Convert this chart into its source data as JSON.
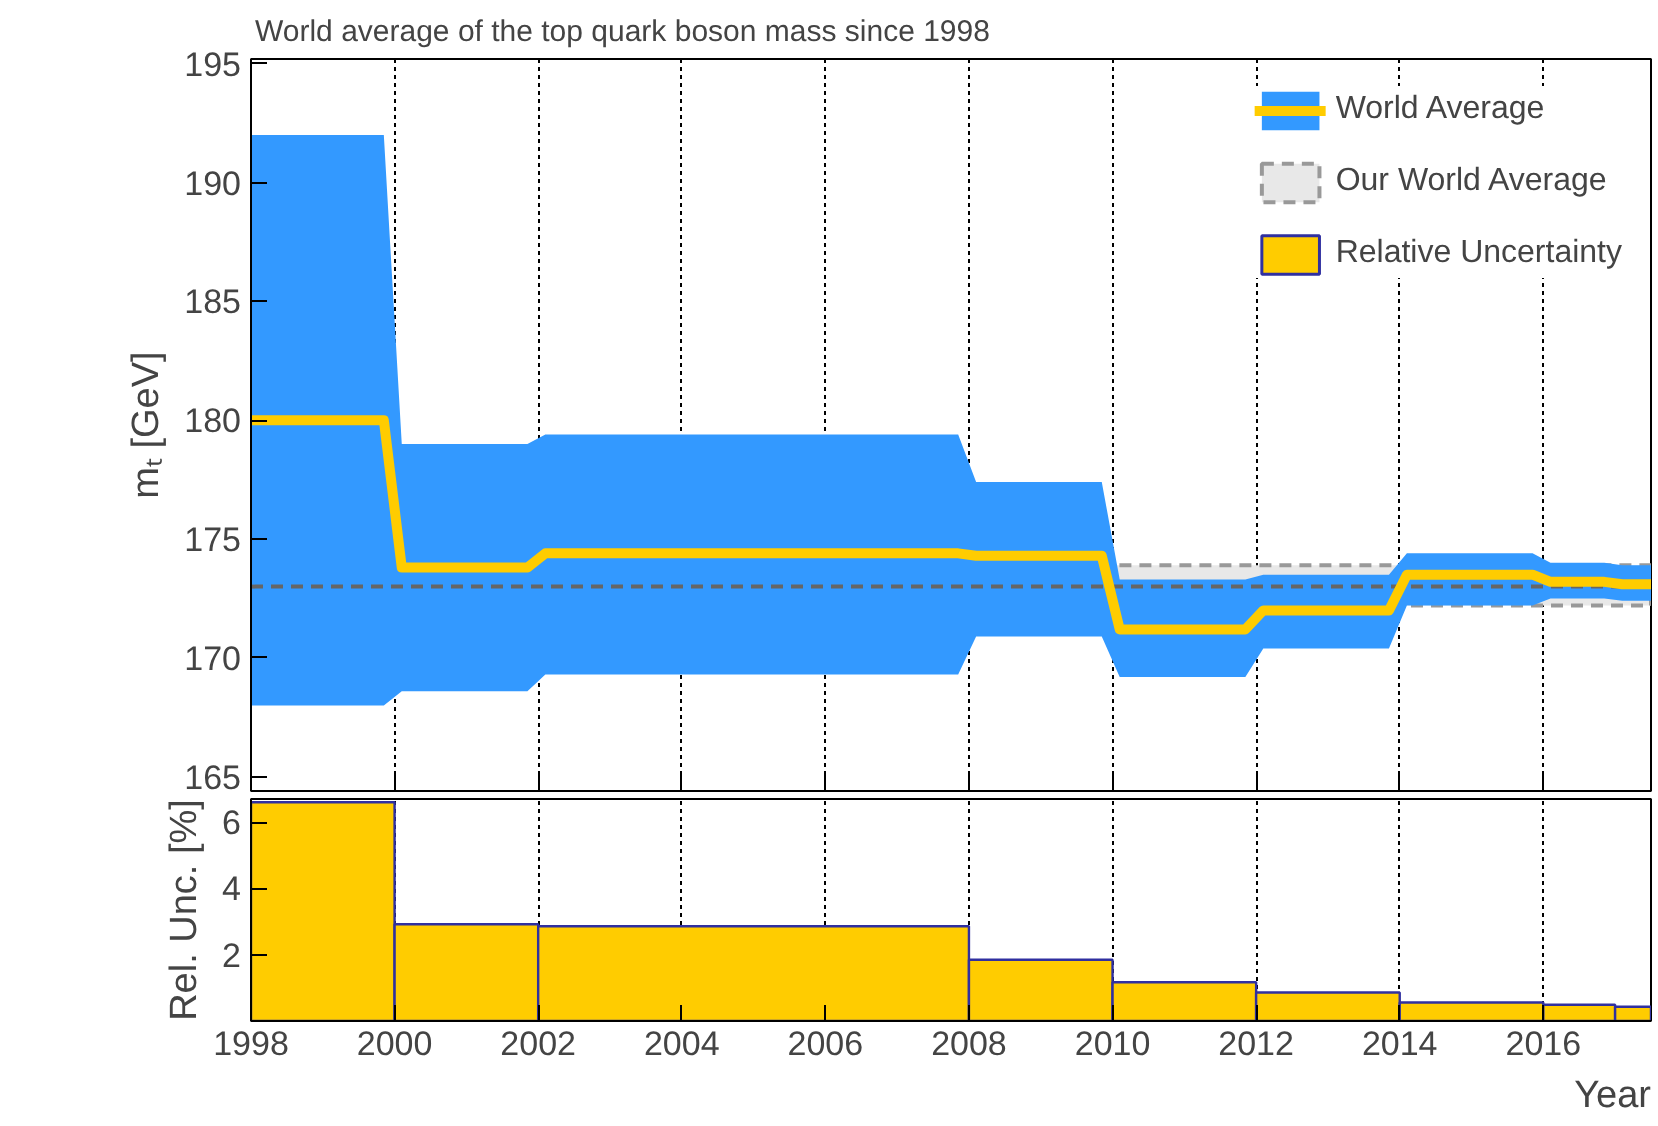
{
  "chart_data": [
    {
      "type": "line",
      "title": "World average of the top quark boson mass since 1998",
      "ylabel": "mₜ [GeV]",
      "series": [
        {
          "name": "World Average",
          "color": "#ffcc00",
          "x": [
            1998,
            1999.85,
            2000.1,
            2001.85,
            2002.1,
            2007.85,
            2008.1,
            2009.85,
            2010.1,
            2011.85,
            2012.1,
            2013.85,
            2014.1,
            2015.85,
            2016.1,
            2016.85,
            2017.1,
            2017.5
          ],
          "values": [
            180.0,
            180.0,
            173.8,
            173.8,
            174.4,
            174.4,
            174.3,
            174.3,
            171.2,
            171.2,
            172.0,
            172.0,
            173.5,
            173.5,
            173.2,
            173.2,
            173.1,
            173.1
          ],
          "lower": [
            168,
            168,
            168.6,
            168.6,
            169.3,
            169.3,
            170.9,
            170.9,
            169.2,
            169.2,
            170.4,
            170.4,
            172.2,
            172.2,
            172.5,
            172.5,
            172.4,
            172.4
          ],
          "upper": [
            192,
            192,
            179.0,
            179.0,
            179.4,
            179.4,
            177.4,
            177.4,
            173.3,
            173.3,
            173.5,
            173.5,
            174.4,
            174.4,
            174.0,
            174.0,
            173.9,
            173.9
          ]
        }
      ],
      "bands": [
        {
          "axis": "y",
          "from": 172.2,
          "to": 173.9,
          "label": "Our World Average",
          "color": "#e8e8e8"
        }
      ],
      "ref_lines": [
        {
          "axis": "y",
          "value": 173.0,
          "color": "#666666",
          "line_style": "dashed"
        }
      ],
      "xlim": [
        1998,
        2017.5
      ],
      "xticks": [
        1998,
        2000,
        2002,
        2004,
        2006,
        2008,
        2010,
        2012,
        2014,
        2016
      ],
      "ylim": [
        164.4,
        195.2
      ],
      "yticks": [
        165,
        170,
        175,
        180,
        185,
        190,
        195
      ],
      "tick_labels": "y",
      "grid": "x",
      "legend": "top right"
    },
    {
      "type": "histogram",
      "ylabel": "Rel. Unc. [%]",
      "xlabel": "Year",
      "bins": [
        1998,
        2000,
        2002,
        2008,
        2010,
        2012,
        2014,
        2016,
        2017,
        2017.5
      ],
      "series": [
        {
          "name": "Relative Uncertainty",
          "color": "#ffcc00",
          "values": [
            6.6,
            2.92,
            2.86,
            1.85,
            1.17,
            0.86,
            0.56,
            0.49,
            0.43
          ]
        }
      ],
      "xlim": [
        1998,
        2017.5
      ],
      "xticks": [
        1998,
        2000,
        2002,
        2004,
        2006,
        2008,
        2010,
        2012,
        2014,
        2016
      ],
      "ylim": [
        0,
        6.7
      ],
      "yticks": [
        2,
        4,
        6
      ],
      "grid": "x"
    }
  ]
}
